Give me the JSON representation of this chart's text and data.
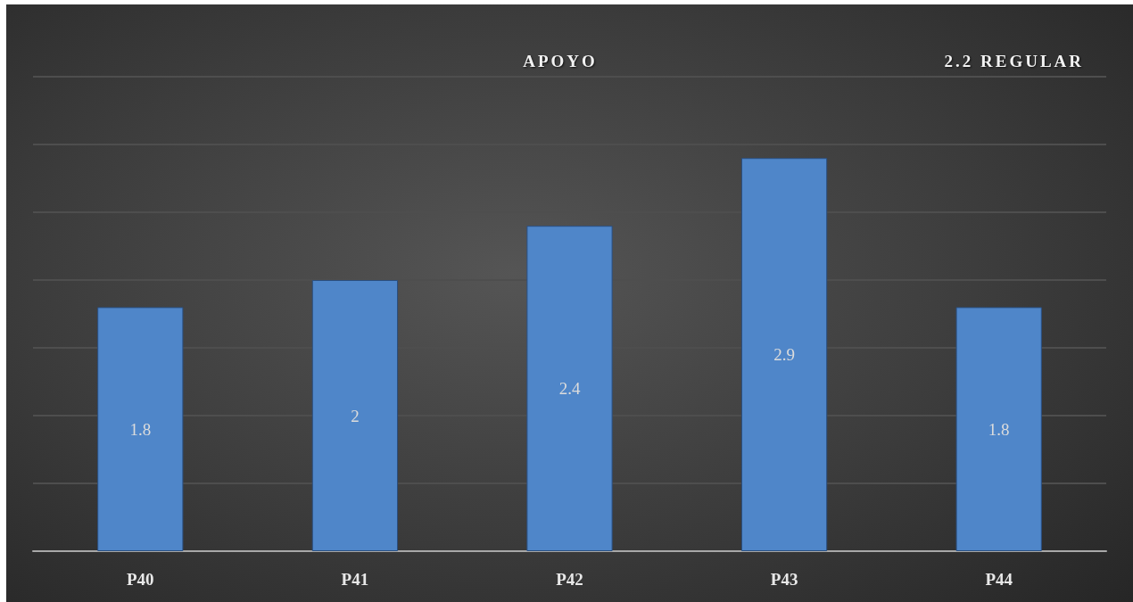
{
  "chart_data": {
    "type": "bar",
    "title": "APOYO",
    "annotations": [
      "2.2 REGULAR"
    ],
    "categories": [
      "P40",
      "P41",
      "P42",
      "P43",
      "P44"
    ],
    "values": [
      1.8,
      2,
      2.4,
      2.9,
      1.8
    ],
    "color": "#4f86c9",
    "ylim": [
      0,
      3.5
    ],
    "yticks": [
      0,
      0.5,
      1,
      1.5,
      2,
      2.5,
      3,
      3.5
    ],
    "grid": "y",
    "data_labels": true,
    "tick_labels": "x"
  }
}
